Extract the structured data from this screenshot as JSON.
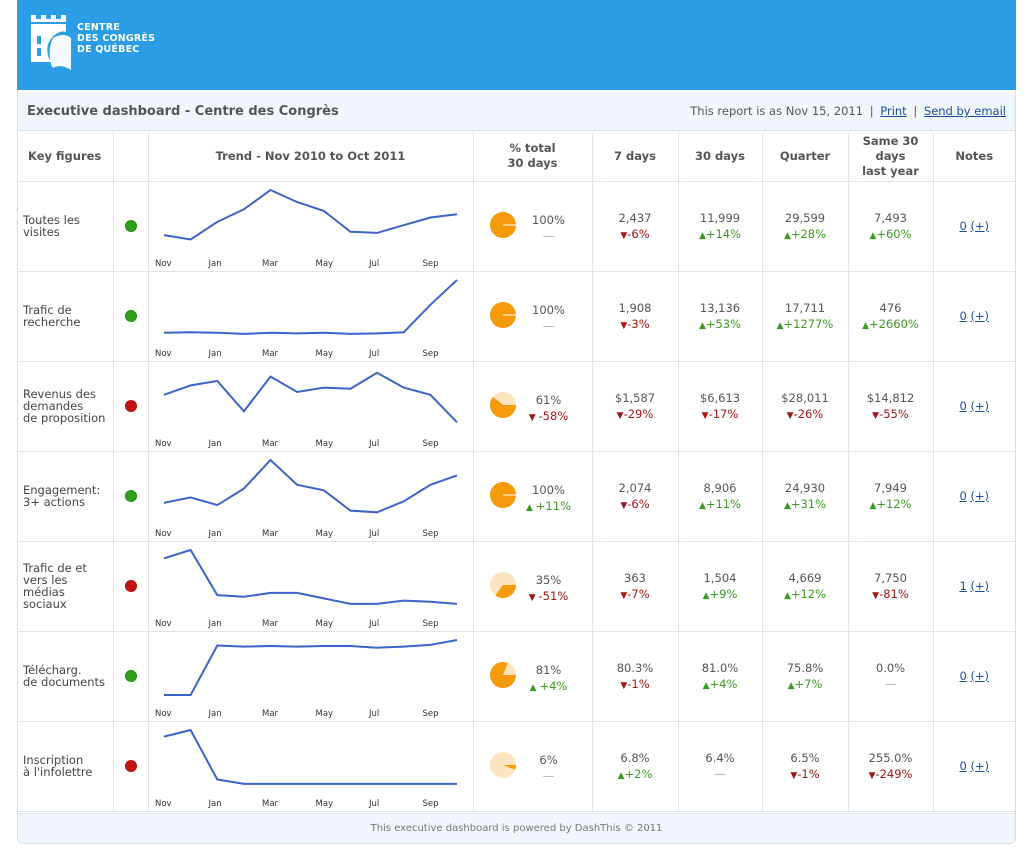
{
  "brand": {
    "logo_lines": [
      "CENTRE",
      "DES CONGRÈS",
      "DE QUÉBEC"
    ],
    "banner_color": "#2b9ce6"
  },
  "header": {
    "title": "Executive dashboard - Centre des Congrès",
    "report_date": "This report is as Nov 15, 2011",
    "print_label": "Print",
    "email_label": "Send by email",
    "separator": "|"
  },
  "columns": {
    "key_figures": "Key figures",
    "trend": "Trend - Nov 2010 to Oct 2011",
    "pct_total_l1": "% total",
    "pct_total_l2": "30 days",
    "d7": "7 days",
    "d30": "30 days",
    "quarter": "Quarter",
    "same_l1": "Same 30",
    "same_l2": "days",
    "same_l3": "last year",
    "notes": "Notes"
  },
  "trend_axis_labels": [
    "Nov",
    "Jan",
    "Mar",
    "May",
    "Jul",
    "Sep"
  ],
  "status_colors": {
    "good": "#2ea01a",
    "bad": "#c81010"
  },
  "rows": [
    {
      "label_lines": [
        "Toutes les",
        "visites"
      ],
      "status": "good",
      "trend": [
        0.18,
        0.1,
        0.42,
        0.65,
        1.0,
        0.78,
        0.62,
        0.24,
        0.22,
        0.36,
        0.5,
        0.56
      ],
      "share": {
        "value": "100%",
        "change": "—",
        "dir": "nil",
        "fraction": 1.0
      },
      "d7": {
        "value": "2,437",
        "change": "-6%",
        "dir": "down"
      },
      "d30": {
        "value": "11,999",
        "change": "+14%",
        "dir": "up"
      },
      "quarter": {
        "value": "29,599",
        "change": "+28%",
        "dir": "up"
      },
      "last_year": {
        "value": "7,493",
        "change": "+60%",
        "dir": "up"
      },
      "notes": {
        "count": "0",
        "add": "(+)"
      }
    },
    {
      "label_lines": [
        "Trafic de",
        "recherche"
      ],
      "status": "good",
      "trend": [
        0.04,
        0.05,
        0.04,
        0.02,
        0.04,
        0.03,
        0.04,
        0.02,
        0.03,
        0.05,
        0.55,
        1.0
      ],
      "share": {
        "value": "100%",
        "change": "—",
        "dir": "nil",
        "fraction": 1.0
      },
      "d7": {
        "value": "1,908",
        "change": "-3%",
        "dir": "down"
      },
      "d30": {
        "value": "13,136",
        "change": "+53%",
        "dir": "up"
      },
      "quarter": {
        "value": "17,711",
        "change": "+1277%",
        "dir": "up"
      },
      "last_year": {
        "value": "476",
        "change": "+2660%",
        "dir": "up"
      },
      "notes": {
        "count": "0",
        "add": "(+)"
      }
    },
    {
      "label_lines": [
        "Revenus des",
        "demandes",
        "de proposition"
      ],
      "status": "bad",
      "trend": [
        0.55,
        0.72,
        0.8,
        0.25,
        0.88,
        0.6,
        0.68,
        0.66,
        0.95,
        0.68,
        0.55,
        0.05
      ],
      "share": {
        "value": "61%",
        "change": "-58%",
        "dir": "down",
        "fraction": 0.61
      },
      "d7": {
        "value": "$1,587",
        "change": "-29%",
        "dir": "down"
      },
      "d30": {
        "value": "$6,613",
        "change": "-17%",
        "dir": "down"
      },
      "quarter": {
        "value": "$28,011",
        "change": "-26%",
        "dir": "down"
      },
      "last_year": {
        "value": "$14,812",
        "change": "-55%",
        "dir": "down"
      },
      "notes": {
        "count": "0",
        "add": "(+)"
      }
    },
    {
      "label_lines": [
        "Engagement:",
        "3+ actions"
      ],
      "status": "good",
      "trend": [
        0.22,
        0.32,
        0.18,
        0.48,
        1.0,
        0.55,
        0.45,
        0.08,
        0.05,
        0.25,
        0.55,
        0.72
      ],
      "share": {
        "value": "100%",
        "change": "+11%",
        "dir": "up",
        "fraction": 1.0
      },
      "d7": {
        "value": "2,074",
        "change": "-6%",
        "dir": "down"
      },
      "d30": {
        "value": "8,906",
        "change": "+11%",
        "dir": "up"
      },
      "quarter": {
        "value": "24,930",
        "change": "+31%",
        "dir": "up"
      },
      "last_year": {
        "value": "7,949",
        "change": "+12%",
        "dir": "up"
      },
      "notes": {
        "count": "0",
        "add": "(+)"
      }
    },
    {
      "label_lines": [
        "Trafic de et",
        "vers les",
        "médias",
        "sociaux"
      ],
      "status": "bad",
      "trend": [
        0.85,
        1.0,
        0.18,
        0.15,
        0.22,
        0.22,
        0.12,
        0.02,
        0.02,
        0.08,
        0.06,
        0.02
      ],
      "share": {
        "value": "35%",
        "change": "-51%",
        "dir": "down",
        "fraction": 0.35
      },
      "d7": {
        "value": "363",
        "change": "-7%",
        "dir": "down"
      },
      "d30": {
        "value": "1,504",
        "change": "+9%",
        "dir": "up"
      },
      "quarter": {
        "value": "4,669",
        "change": "+12%",
        "dir": "up"
      },
      "last_year": {
        "value": "7,750",
        "change": "-81%",
        "dir": "down"
      },
      "notes": {
        "count": "1",
        "add": "(+)"
      }
    },
    {
      "label_lines": [
        "Télécharg.",
        "de documents"
      ],
      "status": "good",
      "trend": [
        0.0,
        0.0,
        0.9,
        0.88,
        0.89,
        0.88,
        0.89,
        0.89,
        0.86,
        0.88,
        0.91,
        1.0
      ],
      "share": {
        "value": "81%",
        "change": "+4%",
        "dir": "up",
        "fraction": 0.81
      },
      "d7": {
        "value": "80.3%",
        "change": "-1%",
        "dir": "down"
      },
      "d30": {
        "value": "81.0%",
        "change": "+4%",
        "dir": "up"
      },
      "quarter": {
        "value": "75.8%",
        "change": "+7%",
        "dir": "up"
      },
      "last_year": {
        "value": "0.0%",
        "change": "—",
        "dir": "nil"
      },
      "notes": {
        "count": "0",
        "add": "(+)"
      }
    },
    {
      "label_lines": [
        "Inscription",
        "à l'infolettre"
      ],
      "status": "bad",
      "trend": [
        0.88,
        1.0,
        0.1,
        0.02,
        0.02,
        0.02,
        0.02,
        0.02,
        0.02,
        0.02,
        0.02,
        0.02
      ],
      "share": {
        "value": "6%",
        "change": "—",
        "dir": "nil",
        "fraction": 0.06
      },
      "d7": {
        "value": "6.8%",
        "change": "+2%",
        "dir": "up"
      },
      "d30": {
        "value": "6.4%",
        "change": "—",
        "dir": "nil"
      },
      "quarter": {
        "value": "6.5%",
        "change": "-1%",
        "dir": "down"
      },
      "last_year": {
        "value": "255.0%",
        "change": "-249%",
        "dir": "down"
      },
      "notes": {
        "count": "0",
        "add": "(+)"
      }
    }
  ],
  "footer": {
    "text": "This executive dashboard is powered by DashThis © 2011"
  }
}
